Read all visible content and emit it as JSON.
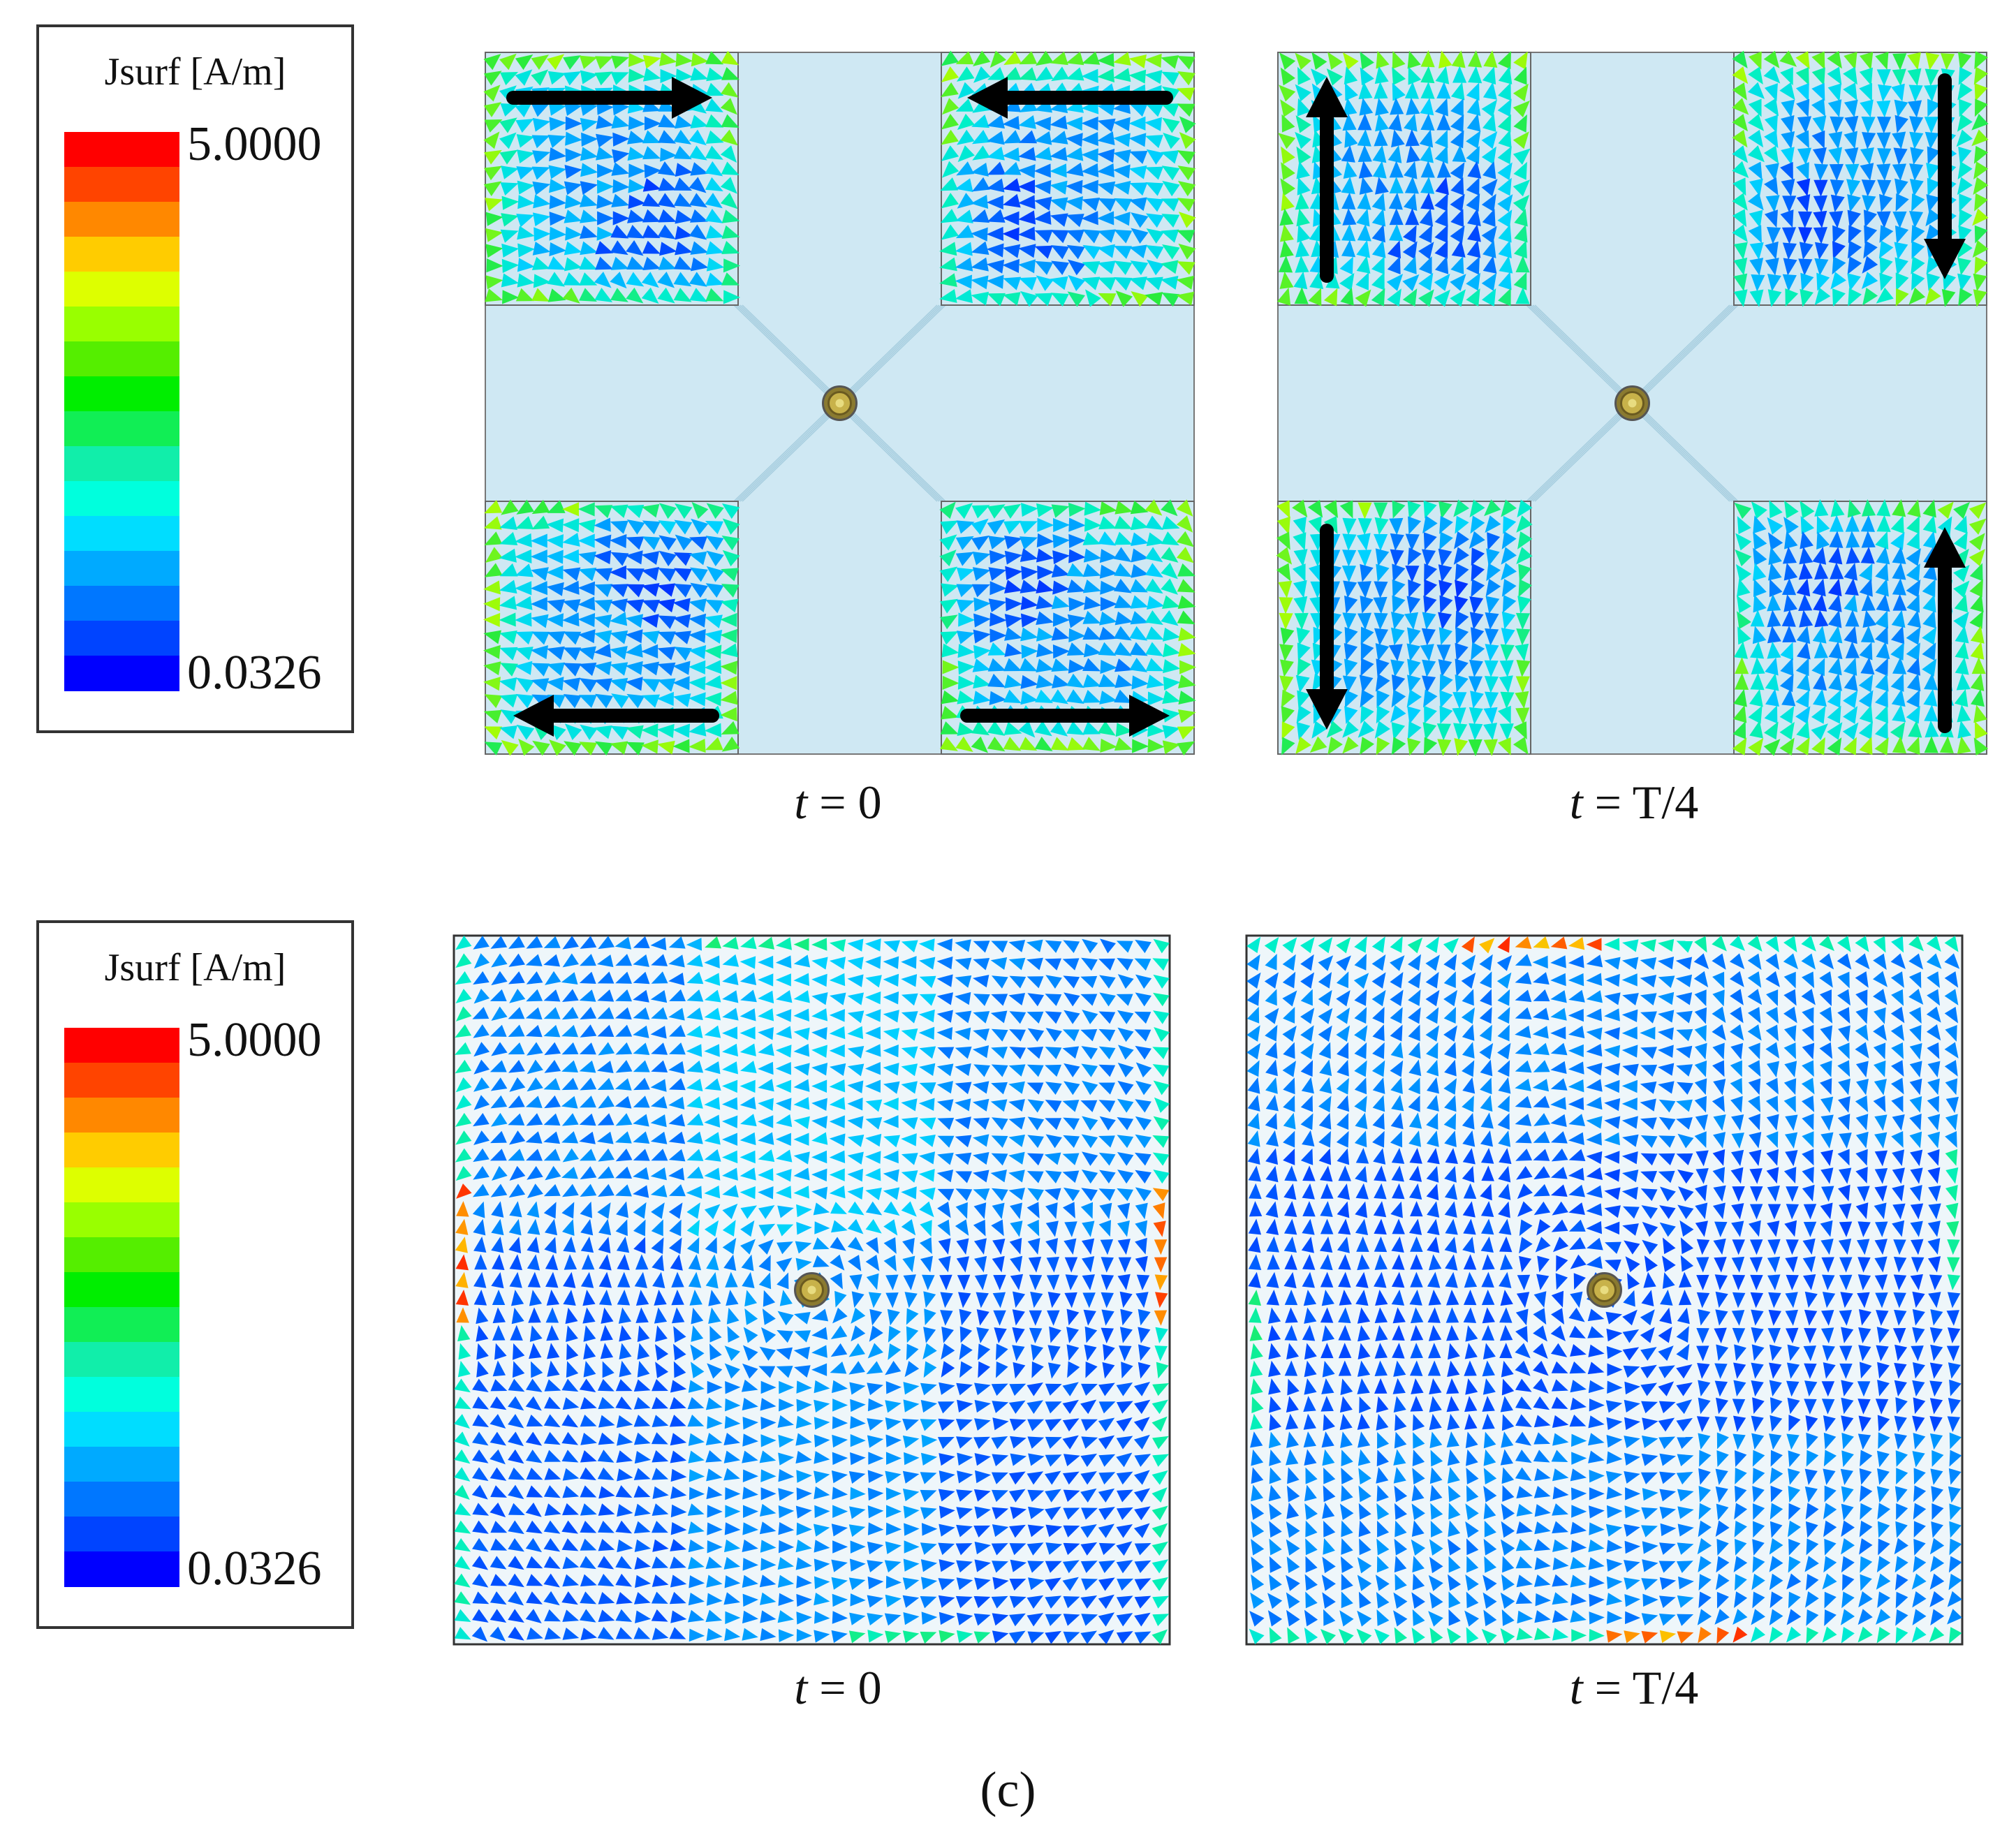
{
  "legend": {
    "title": "Jsurf [A/m]",
    "max_label": "5.0000",
    "min_label": "0.0326",
    "colors": [
      "#ff0000",
      "#ff4400",
      "#ff8800",
      "#ffcc00",
      "#ddff00",
      "#99ff00",
      "#55ee00",
      "#00ee00",
      "#11ee55",
      "#11eeaa",
      "#00ffdd",
      "#00ddff",
      "#00aaff",
      "#0077ff",
      "#0044ff",
      "#0000ff"
    ]
  },
  "top_row": {
    "left_caption": {
      "var": "t",
      "rest": " = 0"
    },
    "right_caption": {
      "var": "t",
      "rest": " = T/4"
    }
  },
  "bottom_row": {
    "left_caption": {
      "var": "t",
      "rest": " = 0"
    },
    "right_caption": {
      "var": "t",
      "rest": " = T/4"
    }
  },
  "sublabel": "(c)",
  "style": {
    "patch_fill": "#cfe8f3",
    "arrow_black": "#000000",
    "feed_color": "#c8b24a"
  }
}
